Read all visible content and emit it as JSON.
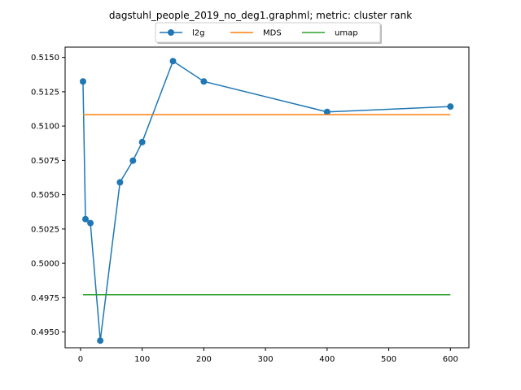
{
  "chart_data": {
    "type": "line",
    "title": "dagstuhl_people_2019_no_deg1.graphml; metric: cluster rank",
    "xlabel": "",
    "ylabel": "",
    "xlim": [
      -25,
      630
    ],
    "ylim": [
      0.49385,
      0.51575
    ],
    "xticks": [
      0,
      100,
      200,
      300,
      400,
      500,
      600
    ],
    "yticks": [
      0.495,
      0.4975,
      0.5,
      0.5025,
      0.505,
      0.5075,
      0.51,
      0.5125,
      0.515
    ],
    "ytick_labels": [
      "0.4950",
      "0.4975",
      "0.5000",
      "0.5025",
      "0.5050",
      "0.5075",
      "0.5100",
      "0.5125",
      "0.5150"
    ],
    "grid": false,
    "legend_position": "top-center",
    "series": [
      {
        "name": "l2g",
        "color": "#1f77b4",
        "marker": "circle",
        "x": [
          4,
          8,
          16,
          32,
          64,
          85,
          100,
          150,
          200,
          400,
          600
        ],
        "y": [
          0.51325,
          0.50322,
          0.50293,
          0.49437,
          0.5059,
          0.50748,
          0.50883,
          0.51473,
          0.51325,
          0.51103,
          0.51142
        ]
      },
      {
        "name": "MDS",
        "color": "#ff7f0e",
        "marker": "none",
        "x": [
          4,
          600
        ],
        "y": [
          0.51083,
          0.51083
        ]
      },
      {
        "name": "umap",
        "color": "#2ca02c",
        "marker": "none",
        "x": [
          4,
          600
        ],
        "y": [
          0.49771,
          0.49771
        ]
      }
    ]
  }
}
